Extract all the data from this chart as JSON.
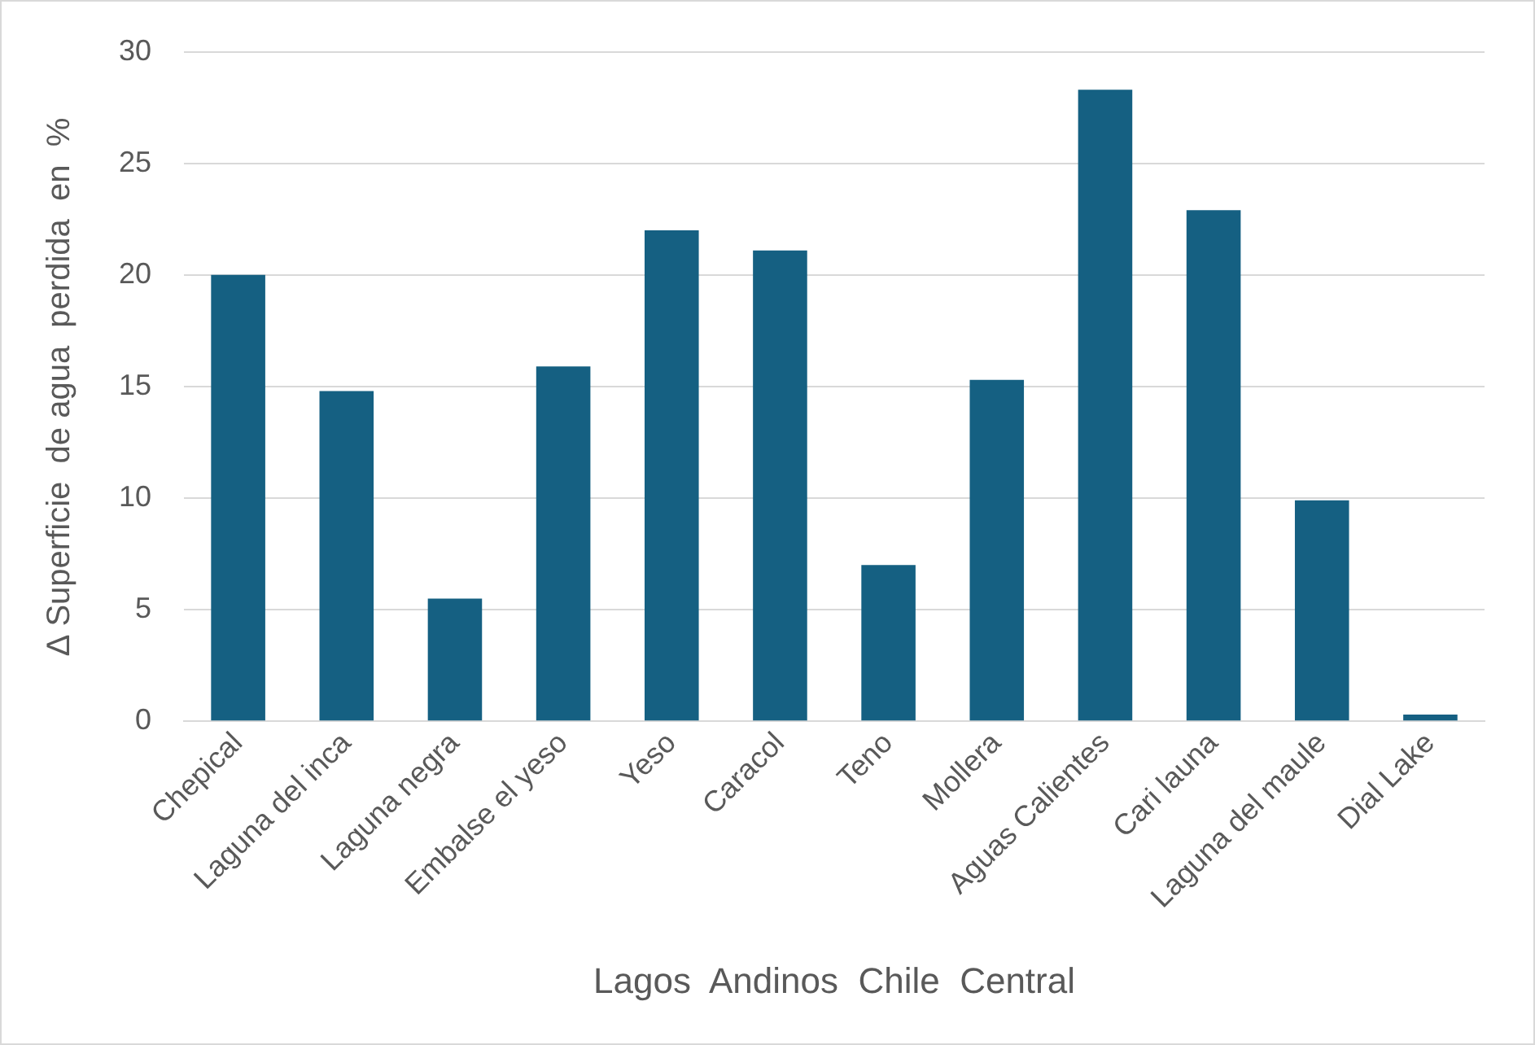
{
  "chart_data": {
    "type": "bar",
    "xlabel": "Lagos  Andinos  Chile  Central",
    "ylabel": "∆ Superficie  de agua  perdida  en  %",
    "categories": [
      "Chepical",
      "Laguna del inca",
      "Laguna negra",
      "Embalse el yeso",
      "Yeso",
      "Caracol",
      "Teno",
      "Mollera",
      "Aguas Calientes",
      "Cari launa",
      "Laguna del maule",
      "Dial Lake"
    ],
    "values": [
      20.0,
      14.8,
      5.5,
      15.9,
      22.0,
      21.1,
      7.0,
      15.3,
      28.3,
      22.9,
      9.9,
      0.3
    ],
    "color": "#156082",
    "ylim": [
      0,
      30
    ],
    "yticks": [
      0,
      5,
      10,
      15,
      20,
      25,
      30
    ],
    "grid": "y",
    "legend": false
  }
}
